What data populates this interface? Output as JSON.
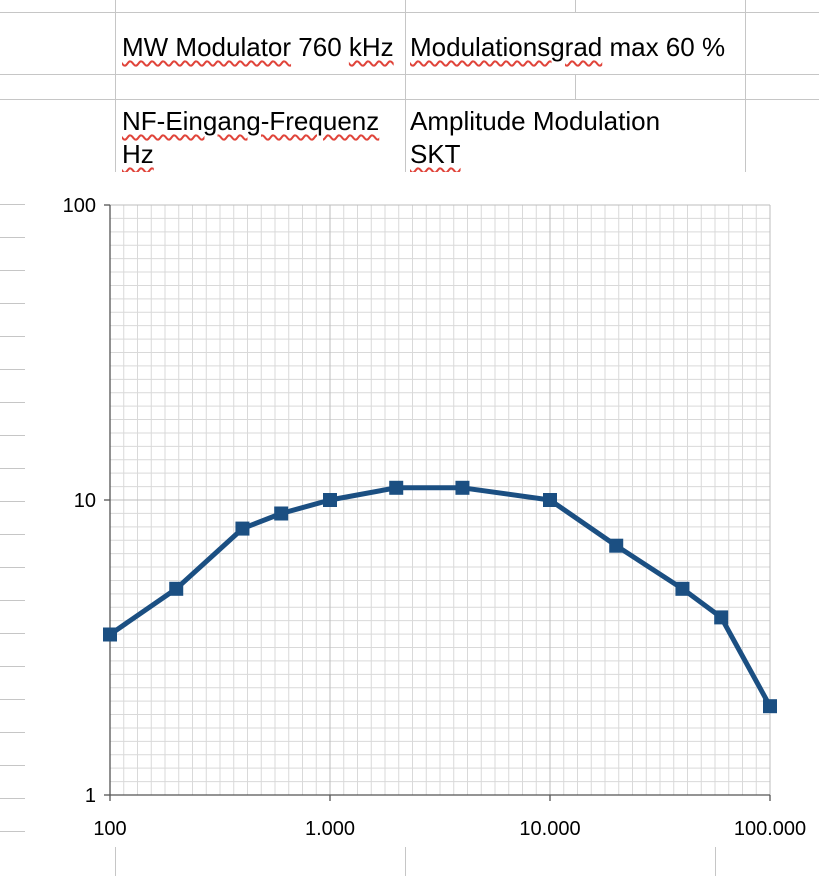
{
  "sheet": {
    "cells": {
      "title_left": {
        "segments": [
          {
            "text": "MW Modulator",
            "misspelled": true
          },
          {
            "text": " 760 ",
            "misspelled": false
          },
          {
            "text": "kHz",
            "misspelled": true
          }
        ]
      },
      "title_right": {
        "segments": [
          {
            "text": "Modulationsgrad",
            "misspelled": true
          },
          {
            "text": " max 60 %",
            "misspelled": false
          }
        ]
      },
      "x_meaning": {
        "segments": [
          {
            "text": "NF-Eingang-Frequenz",
            "misspelled": true
          }
        ]
      },
      "x_unit": {
        "segments": [
          {
            "text": "Hz",
            "misspelled": true
          }
        ]
      },
      "y_meaning": {
        "segments": [
          {
            "text": "Amplitude Modulation",
            "misspelled": false
          }
        ]
      },
      "y_unit": {
        "segments": [
          {
            "text": "SKT",
            "misspelled": true
          }
        ]
      }
    }
  },
  "colors": {
    "series": "#1b4f82",
    "grid_minor": "#d9d9d9",
    "grid_major": "#bdbdbd",
    "axis": "#555555",
    "sheet_grid": "#c6c6c6",
    "squiggle": "#e0443a",
    "label": "#000000"
  },
  "chart_data": {
    "type": "line",
    "title": "MW Modulator 760 kHz Modulationsgrad max 60 %",
    "xlabel": "NF-Eingang-Frequenz Hz",
    "ylabel": "Amplitude Modulation SKT",
    "x_scale": "log",
    "y_scale": "log",
    "xlim": [
      100,
      100000
    ],
    "ylim": [
      1,
      100
    ],
    "x": [
      100,
      200,
      400,
      600,
      1000,
      2000,
      4000,
      10000,
      20000,
      40000,
      60000,
      100000
    ],
    "y": [
      3.5,
      5,
      8,
      9,
      10,
      11,
      11,
      10,
      7,
      5,
      4,
      2
    ],
    "x_ticks": {
      "values": [
        100,
        1000,
        10000,
        100000
      ],
      "labels": [
        "100",
        "1.000",
        "10.000",
        "100.000"
      ]
    },
    "y_ticks": {
      "values": [
        1,
        10,
        100
      ],
      "labels": [
        "1",
        "10",
        "100"
      ]
    },
    "marker": "square",
    "grid": "fine",
    "legend": "none"
  }
}
